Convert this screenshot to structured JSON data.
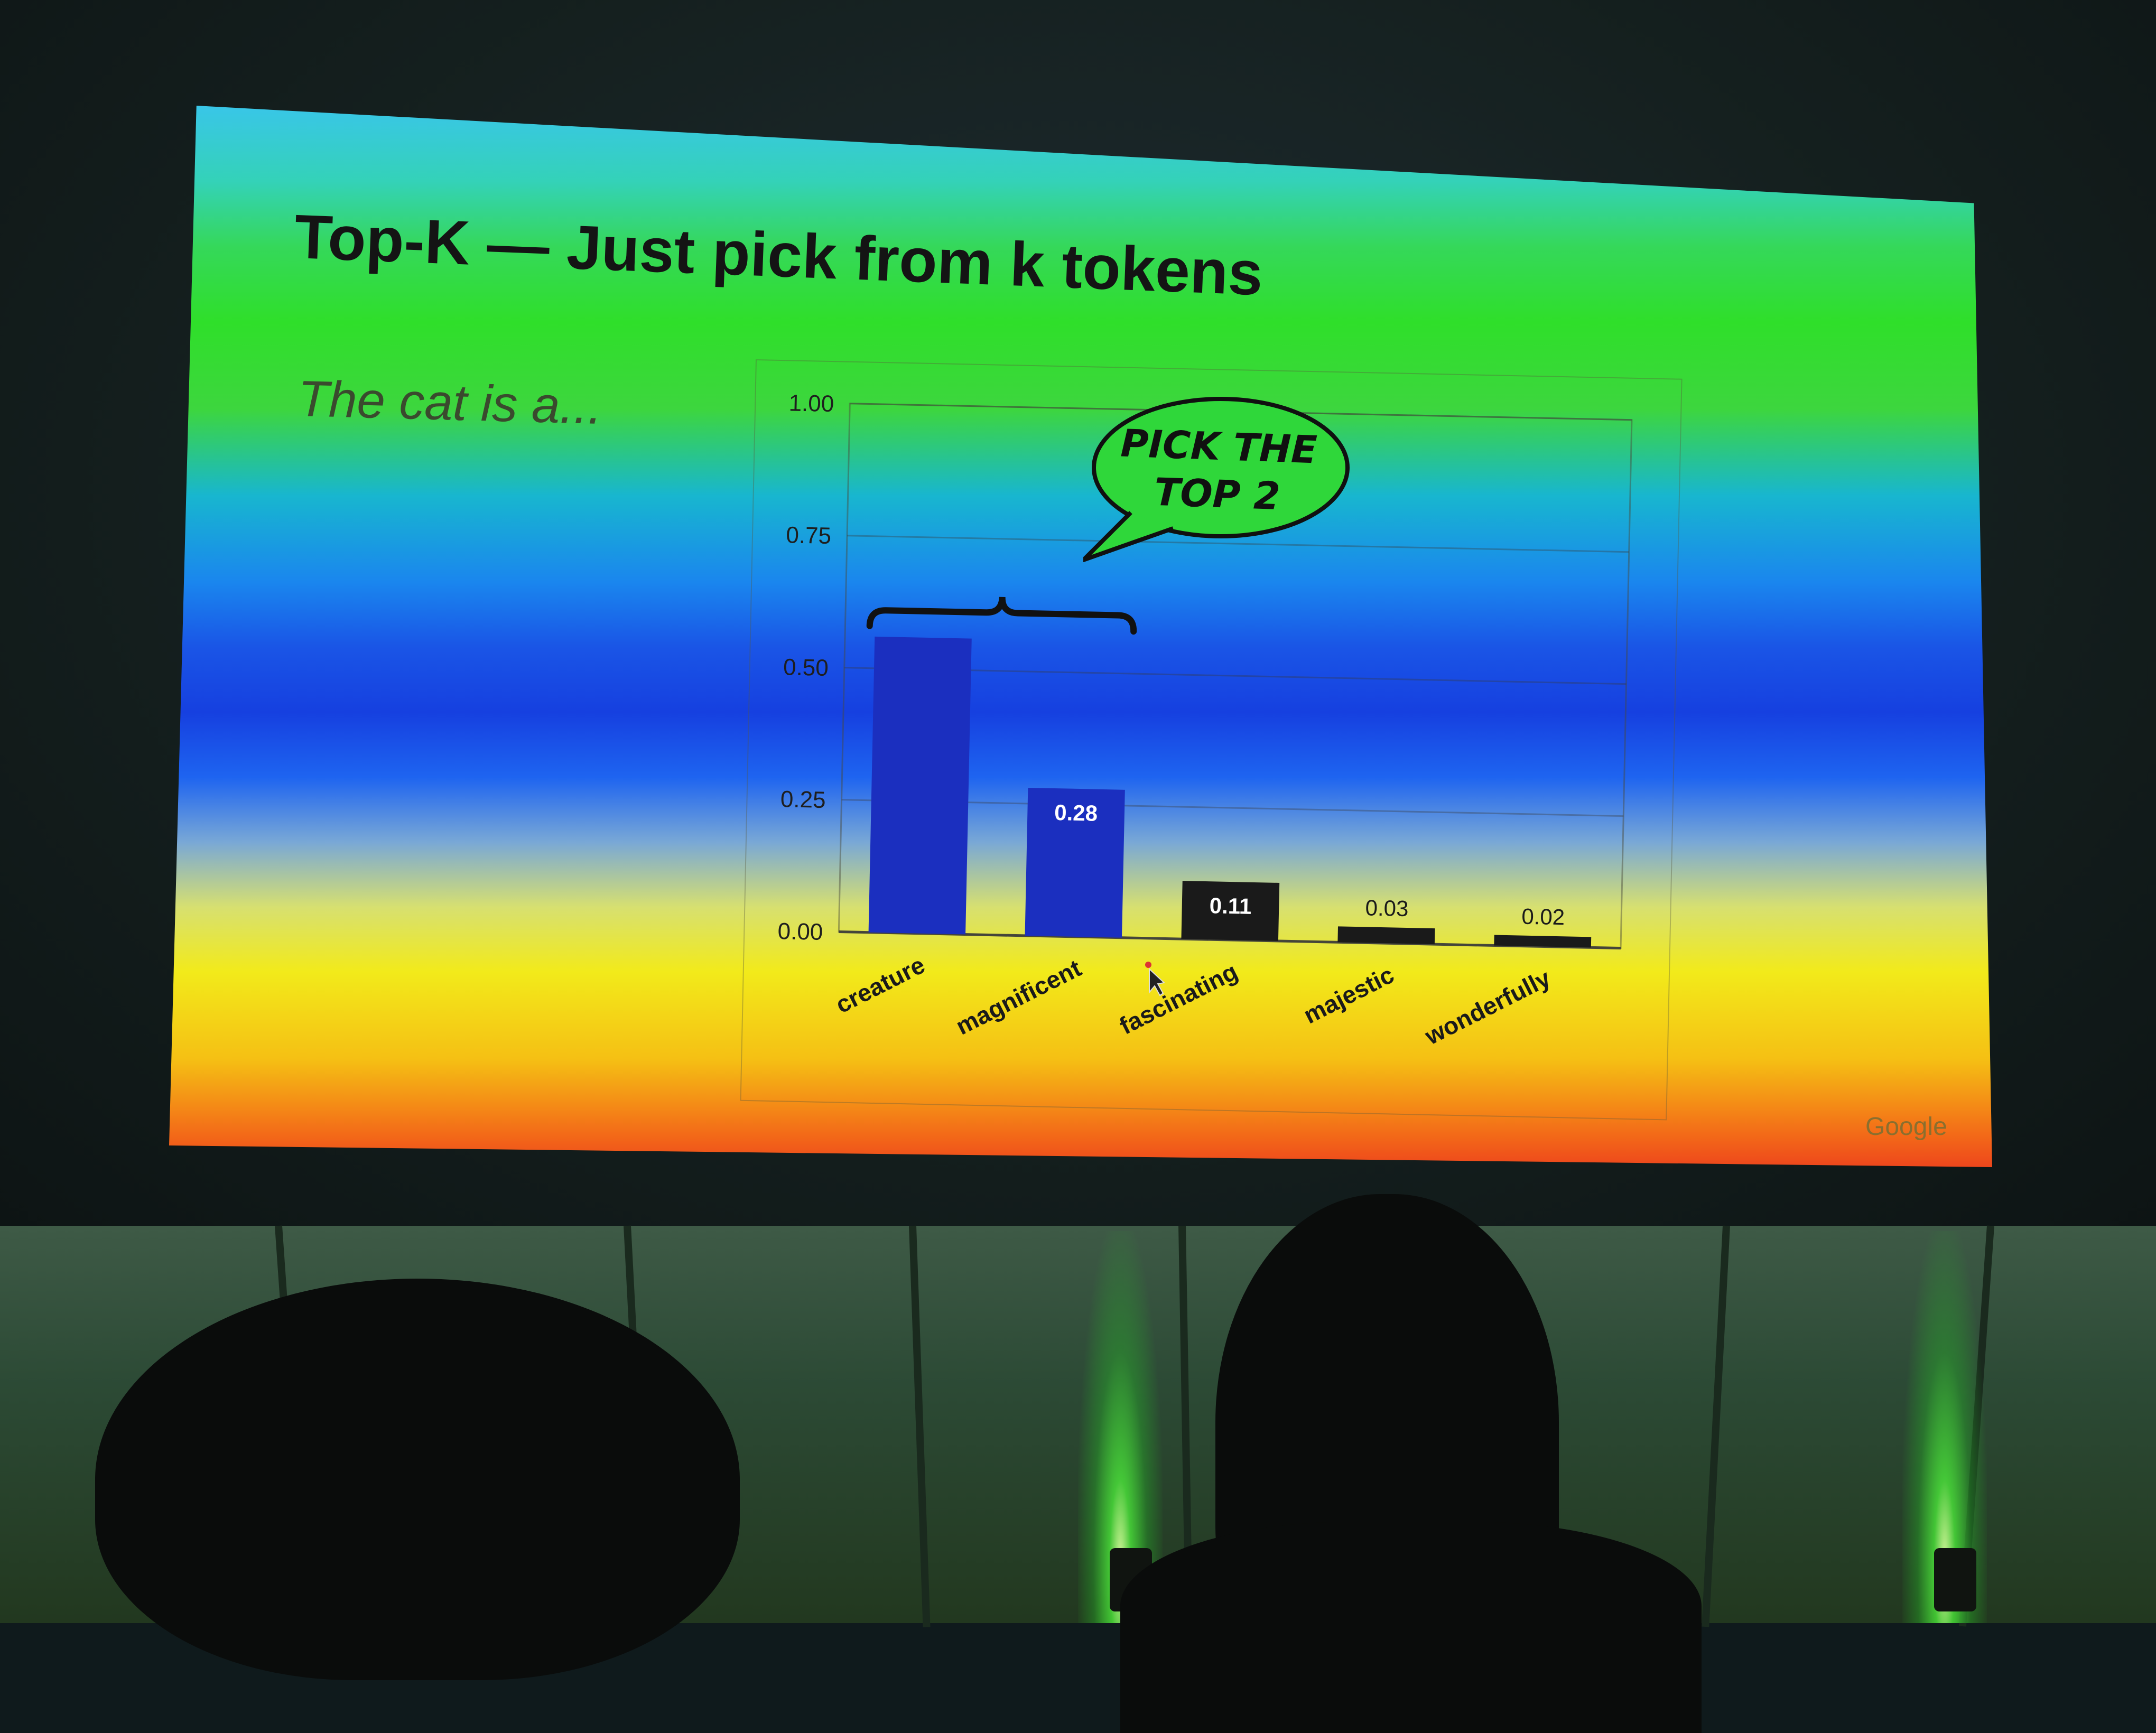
{
  "slide": {
    "title": "Top-K — Just pick from k tokens",
    "prompt": "The cat is a...",
    "callout_line1": "PICK THE",
    "callout_line2": "TOP 2",
    "brand": "Google"
  },
  "chart_data": {
    "type": "bar",
    "categories": [
      "creature",
      "magnificent",
      "fascinating",
      "majestic",
      "wonderfully"
    ],
    "values": [
      0.56,
      0.28,
      0.11,
      0.03,
      0.02
    ],
    "data_labels": [
      "",
      "0.28",
      "0.11",
      "0.03",
      "0.02"
    ],
    "y_ticks": [
      "0.00",
      "0.25",
      "0.50",
      "0.75",
      "1.00"
    ],
    "ylim": [
      0,
      1
    ],
    "grid": true,
    "highlighted_top_k": 2
  },
  "colors": {
    "bar": "#1a1a1a",
    "bar_highlight": "#1b2fbf",
    "bubble_fill": "#2fd73a"
  }
}
